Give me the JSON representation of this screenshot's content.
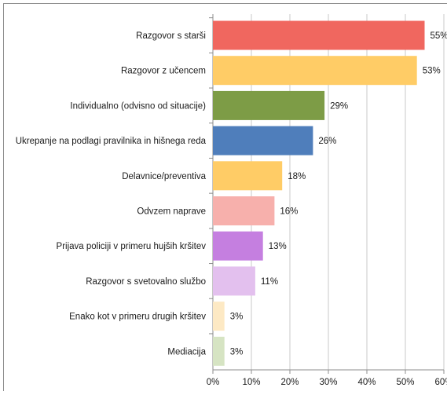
{
  "chart_data": {
    "type": "bar",
    "orientation": "horizontal",
    "title": "",
    "xlabel": "",
    "ylabel": "",
    "xlim": [
      0,
      60
    ],
    "x_ticks": [
      "0%",
      "10%",
      "20%",
      "30%",
      "40%",
      "50%",
      "60%"
    ],
    "grid": true,
    "legend": "none",
    "categories": [
      "Razgovor s starši",
      "Razgovor z učencem",
      "Individualno (odvisno od situacije)",
      "Ukrepanje na podlagi pravilnika in hišnega reda",
      "Delavnice/preventiva",
      "Odvzem naprave",
      "Prijava policiji v primeru hujših kršitev",
      "Razgovor s svetovalno službo",
      "Enako kot v primeru drugih kršitev",
      "Mediacija"
    ],
    "values": [
      55,
      53,
      29,
      26,
      18,
      16,
      13,
      11,
      3,
      3
    ],
    "value_labels": [
      "55%",
      "53%",
      "29%",
      "26%",
      "18%",
      "16%",
      "13%",
      "11%",
      "3%",
      "3%"
    ],
    "colors": [
      "#f0675f",
      "#ffcc66",
      "#7d9c46",
      "#4f7ebb",
      "#ffcc66",
      "#f7b0ac",
      "#c57fe0",
      "#e3c0ee",
      "#fde9c4",
      "#d6e4c3"
    ]
  }
}
